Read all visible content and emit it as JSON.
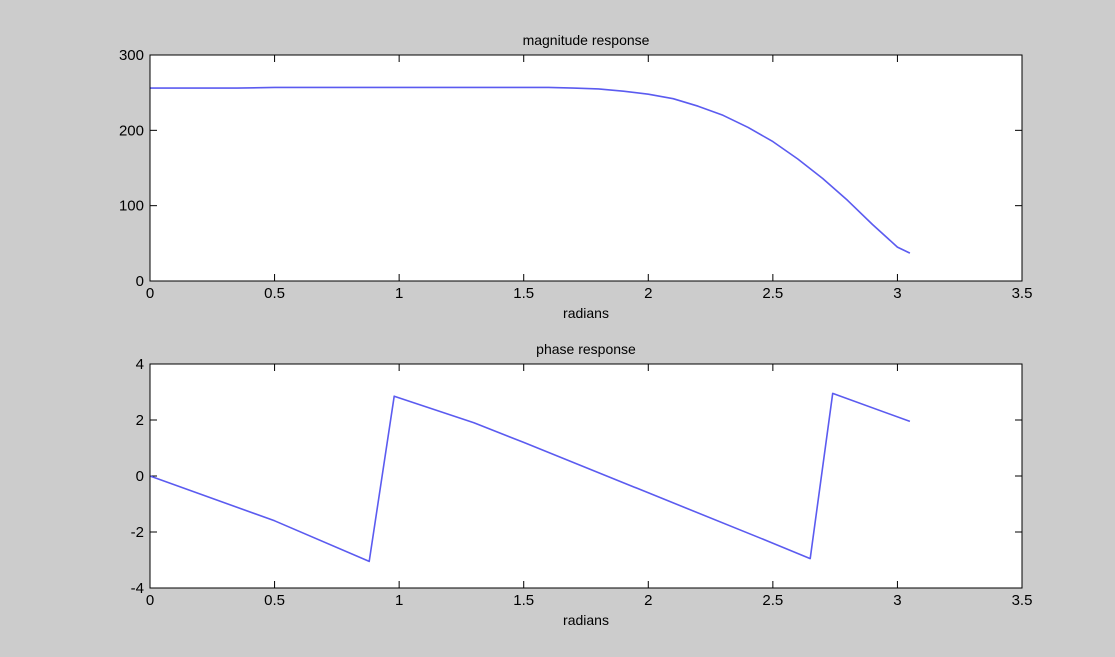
{
  "figure": {
    "background": "#cccccc",
    "axes_background": "#ffffff",
    "line_color": "#5b5bf0"
  },
  "chart_data": [
    {
      "type": "line",
      "title": "magnitude response",
      "xlabel": "radians",
      "ylabel": "",
      "xlim": [
        0,
        3.5
      ],
      "ylim": [
        0,
        300
      ],
      "xticks": [
        0,
        0.5,
        1,
        1.5,
        2,
        2.5,
        3,
        3.5
      ],
      "xtick_labels": [
        "0",
        "0.5",
        "1",
        "1.5",
        "2",
        "2.5",
        "3",
        "3.5"
      ],
      "yticks": [
        0,
        100,
        200,
        300
      ],
      "ytick_labels": [
        "0",
        "100",
        "200",
        "300"
      ],
      "grid": false,
      "series": [
        {
          "x": [
            0,
            0.35,
            0.5,
            1.0,
            1.5,
            1.6,
            1.7,
            1.8,
            1.9,
            2.0,
            2.1,
            2.2,
            2.3,
            2.4,
            2.5,
            2.6,
            2.7,
            2.8,
            2.9,
            3.0,
            3.05
          ],
          "y": [
            256,
            256,
            257,
            257,
            257,
            257,
            256,
            255,
            252,
            248,
            242,
            232,
            220,
            204,
            185,
            162,
            136,
            107,
            75,
            45,
            37
          ]
        }
      ]
    },
    {
      "type": "line",
      "title": "phase response",
      "xlabel": "radians",
      "ylabel": "",
      "xlim": [
        0,
        3.5
      ],
      "ylim": [
        -4,
        4
      ],
      "xticks": [
        0,
        0.5,
        1,
        1.5,
        2,
        2.5,
        3,
        3.5
      ],
      "xtick_labels": [
        "0",
        "0.5",
        "1",
        "1.5",
        "2",
        "2.5",
        "3",
        "3.5"
      ],
      "yticks": [
        -4,
        -2,
        0,
        2,
        4
      ],
      "ytick_labels": [
        "-4",
        "-2",
        "0",
        "2",
        "4"
      ],
      "grid": false,
      "series": [
        {
          "x": [
            0,
            0.5,
            0.88,
            0.98,
            1.3,
            1.5,
            2.0,
            2.5,
            2.65,
            2.74,
            3.05
          ],
          "y": [
            0,
            -1.6,
            -3.05,
            2.85,
            1.9,
            1.2,
            -0.6,
            -2.4,
            -2.95,
            2.95,
            1.95
          ]
        }
      ]
    }
  ]
}
